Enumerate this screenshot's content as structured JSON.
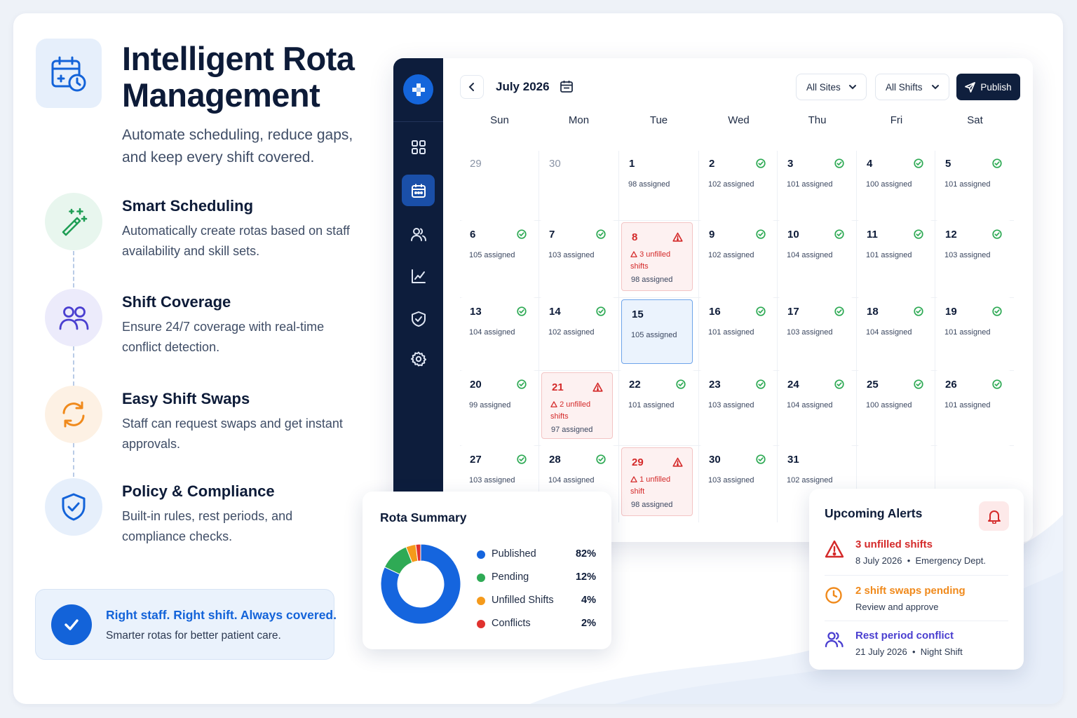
{
  "hero": {
    "title": "Intelligent Rota Management",
    "subtitle": "Automate scheduling, reduce gaps, and keep every shift covered."
  },
  "features": [
    {
      "title": "Smart Scheduling",
      "desc": "Automatically create rotas based on staff availability and skill sets.",
      "icon": "magic-wand-icon",
      "color": "#1f9e55",
      "bg": "#e8f6ee"
    },
    {
      "title": "Shift Coverage",
      "desc": "Ensure 24/7 coverage with real-time conflict detection.",
      "icon": "users-icon",
      "color": "#4a3fd0",
      "bg": "#ecebfb"
    },
    {
      "title": "Easy Shift Swaps",
      "desc": "Staff can request swaps and get instant approvals.",
      "icon": "swap-icon",
      "color": "#f08a1c",
      "bg": "#fdf1e4"
    },
    {
      "title": "Policy & Compliance",
      "desc": "Built-in rules, rest periods, and compliance checks.",
      "icon": "shield-check-icon",
      "color": "#1363d9",
      "bg": "#e6effb"
    }
  ],
  "cta": {
    "title": "Right staff. Right shift. Always covered.",
    "subtitle": "Smarter rotas for better patient care."
  },
  "calendar": {
    "month_label": "July 2026",
    "site_filter": "All Sites",
    "shift_filter": "All Shifts",
    "publish_label": "Publish",
    "weekdays": [
      "Sun",
      "Mon",
      "Tue",
      "Wed",
      "Thu",
      "Fri",
      "Sat"
    ],
    "weeks": [
      [
        {
          "day": "29",
          "muted": true
        },
        {
          "day": "30",
          "muted": true
        },
        {
          "day": "1",
          "assigned": "98 assigned"
        },
        {
          "day": "2",
          "assigned": "102 assigned",
          "ok": true
        },
        {
          "day": "3",
          "assigned": "101 assigned",
          "ok": true
        },
        {
          "day": "4",
          "assigned": "100 assigned",
          "ok": true
        },
        {
          "day": "5",
          "assigned": "101 assigned",
          "ok": true
        }
      ],
      [
        {
          "day": "6",
          "assigned": "105 assigned",
          "ok": true
        },
        {
          "day": "7",
          "assigned": "103 assigned",
          "ok": true
        },
        {
          "day": "8",
          "assigned": "98 assigned",
          "alert": "3 unfilled shifts"
        },
        {
          "day": "9",
          "assigned": "102 assigned",
          "ok": true
        },
        {
          "day": "10",
          "assigned": "104 assigned",
          "ok": true
        },
        {
          "day": "11",
          "assigned": "101 assigned",
          "ok": true
        },
        {
          "day": "12",
          "assigned": "103 assigned",
          "ok": true
        }
      ],
      [
        {
          "day": "13",
          "assigned": "104 assigned",
          "ok": true
        },
        {
          "day": "14",
          "assigned": "102 assigned",
          "ok": true
        },
        {
          "day": "15",
          "assigned": "105 assigned",
          "selected": true
        },
        {
          "day": "16",
          "assigned": "101 assigned",
          "ok": true
        },
        {
          "day": "17",
          "assigned": "103 assigned",
          "ok": true
        },
        {
          "day": "18",
          "assigned": "104 assigned",
          "ok": true
        },
        {
          "day": "19",
          "assigned": "101 assigned",
          "ok": true
        }
      ],
      [
        {
          "day": "20",
          "assigned": "99 assigned",
          "ok": true
        },
        {
          "day": "21",
          "assigned": "97 assigned",
          "alert": "2 unfilled shifts"
        },
        {
          "day": "22",
          "assigned": "101 assigned",
          "ok": true
        },
        {
          "day": "23",
          "assigned": "103 assigned",
          "ok": true
        },
        {
          "day": "24",
          "assigned": "104 assigned",
          "ok": true
        },
        {
          "day": "25",
          "assigned": "100 assigned",
          "ok": true
        },
        {
          "day": "26",
          "assigned": "101 assigned",
          "ok": true
        }
      ],
      [
        {
          "day": "27",
          "assigned": "103 assigned",
          "ok": true
        },
        {
          "day": "28",
          "assigned": "104 assigned",
          "ok": true
        },
        {
          "day": "29",
          "assigned": "98 assigned",
          "alert": "1 unfilled shift"
        },
        {
          "day": "30",
          "assigned": "103 assigned",
          "ok": true
        },
        {
          "day": "31",
          "assigned": "102 assigned"
        },
        {
          "day": ""
        },
        {
          "day": ""
        }
      ]
    ]
  },
  "summary": {
    "title": "Rota Summary",
    "items": [
      {
        "label": "Published",
        "pct": "82%",
        "value": 82,
        "color": "#1565de"
      },
      {
        "label": "Pending",
        "pct": "12%",
        "value": 12,
        "color": "#2faa55"
      },
      {
        "label": "Unfilled Shifts",
        "pct": "4%",
        "value": 4,
        "color": "#f59a1b"
      },
      {
        "label": "Conflicts",
        "pct": "2%",
        "value": 2,
        "color": "#e0322f"
      }
    ],
    "extra_segment_color": "#6b3fd4"
  },
  "alerts": {
    "title": "Upcoming Alerts",
    "items": [
      {
        "title": "3 unfilled shifts",
        "date": "8 July 2026",
        "detail": "Emergency Dept.",
        "color": "#d42a2a",
        "icon": "warning-triangle-icon"
      },
      {
        "title": "2 shift swaps pending",
        "date": "",
        "detail": "Review and approve",
        "color": "#f08a1c",
        "icon": "clock-icon"
      },
      {
        "title": "Rest period conflict",
        "date": "21 July 2026",
        "detail": "Night Shift",
        "color": "#4a3fd0",
        "icon": "users-icon"
      }
    ]
  }
}
